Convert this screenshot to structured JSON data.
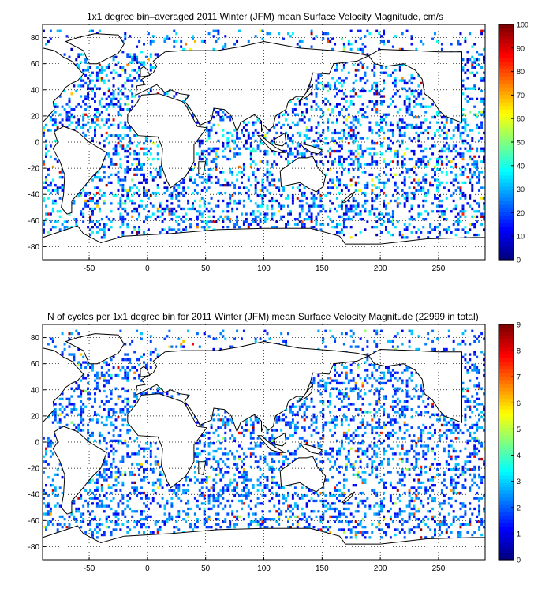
{
  "chart_data": [
    {
      "type": "heatmap",
      "title": "1x1 degree bin–averaged 2011 Winter (JFM) mean Surface Velocity Magnitude, cm/s",
      "xlabel": "",
      "ylabel": "",
      "xlim": [
        -90,
        290
      ],
      "ylim": [
        -90,
        90
      ],
      "x_ticks": [
        -50,
        0,
        50,
        100,
        150,
        200,
        250
      ],
      "y_ticks": [
        80,
        60,
        40,
        20,
        0,
        -20,
        -40,
        -60,
        -80
      ],
      "grid": true,
      "colorbar": {
        "min": 0,
        "max": 100,
        "ticks": [
          0,
          10,
          20,
          30,
          40,
          50,
          60,
          70,
          80,
          90,
          100
        ],
        "colormap": "jet"
      },
      "dominant_value_range": [
        5,
        40
      ],
      "notes_visible": "scattered 1x1 degree bins over ocean areas, mostly blue to cyan with sparse green/yellow/red bins"
    },
    {
      "type": "heatmap",
      "title": "N of cycles per 1x1 degree bin for 2011 Winter (JFM) mean Surface Velocity Magnitude (22999 in total)",
      "xlabel": "",
      "ylabel": "",
      "xlim": [
        -90,
        290
      ],
      "ylim": [
        -90,
        90
      ],
      "x_ticks": [
        -50,
        0,
        50,
        100,
        150,
        200,
        250
      ],
      "y_ticks": [
        80,
        60,
        40,
        20,
        0,
        -20,
        -40,
        -60,
        -80
      ],
      "grid": true,
      "colorbar": {
        "min": 0,
        "max": 9,
        "ticks": [
          0,
          1,
          2,
          3,
          4,
          5,
          6,
          7,
          8,
          9
        ],
        "colormap": "jet"
      },
      "dominant_value_range": [
        1,
        3
      ]
    }
  ]
}
